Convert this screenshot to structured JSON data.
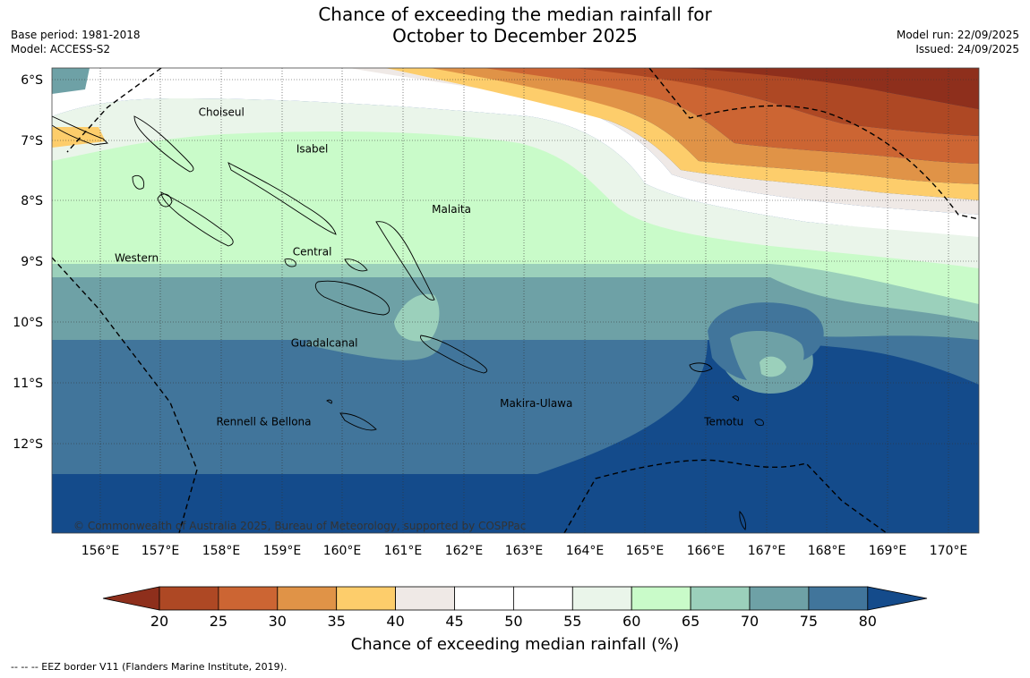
{
  "title_line1": "Chance of exceeding the median rainfall for",
  "title_line2": "October to December 2025",
  "base_period": "Base period: 1981-2018",
  "model": "Model: ACCESS-S2",
  "model_run": "Model run: 22/09/2025",
  "issued": "Issued: 24/09/2025",
  "copyright": "© Commonwealth of Australia 2025, Bureau of Meteorology, supported by COSPPac",
  "footnote": "--  --  -- EEZ border V11 (Flanders Marine Institute, 2019).",
  "map": {
    "lon_ticks": [
      "156°E",
      "157°E",
      "158°E",
      "159°E",
      "160°E",
      "161°E",
      "162°E",
      "163°E",
      "164°E",
      "165°E",
      "166°E",
      "167°E",
      "168°E",
      "169°E",
      "170°E"
    ],
    "lat_ticks": [
      "6°S",
      "7°S",
      "8°S",
      "9°S",
      "10°S",
      "11°S",
      "12°S"
    ],
    "regions": [
      {
        "name": "Choiseul",
        "lon": 158.0,
        "lat": -6.6
      },
      {
        "name": "Isabel",
        "lon": 159.5,
        "lat": -7.2
      },
      {
        "name": "Malaita",
        "lon": 161.8,
        "lat": -8.2
      },
      {
        "name": "Western",
        "lon": 156.6,
        "lat": -9.0
      },
      {
        "name": "Central",
        "lon": 159.5,
        "lat": -8.9
      },
      {
        "name": "Guadalcanal",
        "lon": 159.7,
        "lat": -10.4
      },
      {
        "name": "Makira-Ulawa",
        "lon": 163.2,
        "lat": -11.4
      },
      {
        "name": "Rennell & Bellona",
        "lon": 158.7,
        "lat": -11.7
      },
      {
        "name": "Temotu",
        "lon": 166.3,
        "lat": -11.7
      }
    ]
  },
  "colorbar": {
    "title": "Chance of exceeding median rainfall (%)",
    "ticks": [
      "20",
      "25",
      "30",
      "35",
      "40",
      "45",
      "50",
      "55",
      "60",
      "65",
      "70",
      "75",
      "80"
    ],
    "colors": [
      "#8e2f1c",
      "#ae4824",
      "#cc6533",
      "#e09347",
      "#fdcd6b",
      "#efe9e6",
      "#ffffff",
      "#ffffff",
      "#eaf5ea",
      "#c9fbc9",
      "#9bd0bb",
      "#6ea1a6",
      "#41759b",
      "#144b8b"
    ]
  }
}
